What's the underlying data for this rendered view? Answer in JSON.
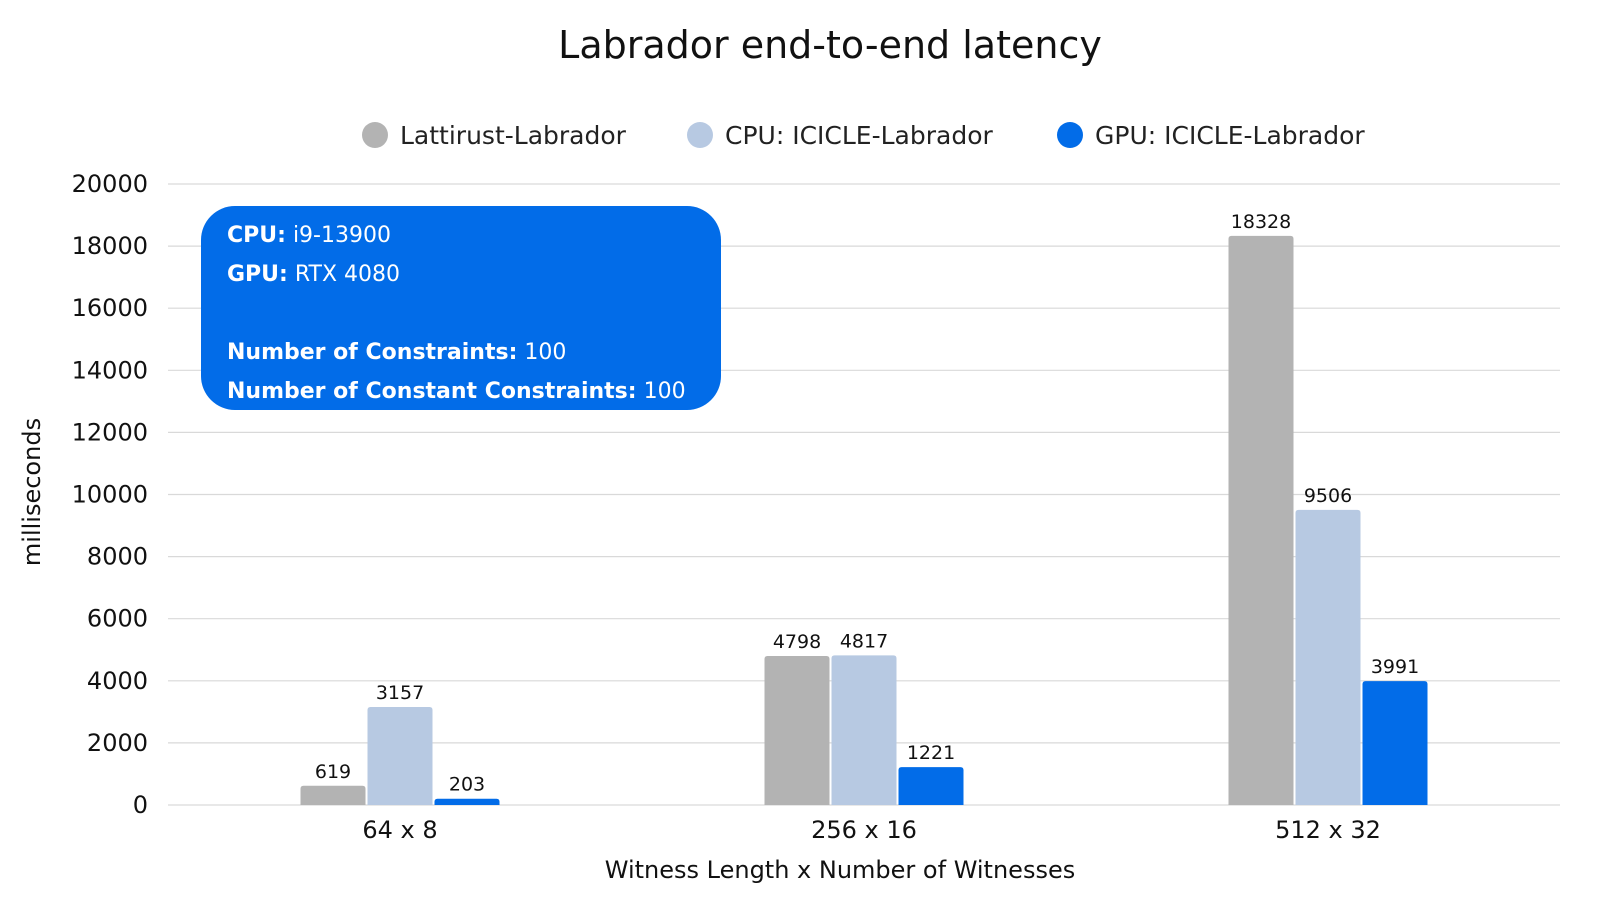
{
  "chart_data": {
    "type": "bar",
    "title": "Labrador end-to-end latency",
    "xlabel": "Witness Length x Number of Witnesses",
    "ylabel": "milliseconds",
    "categories": [
      "64 x 8",
      "256 x 16",
      "512 x 32"
    ],
    "ylim": [
      0,
      20000
    ],
    "yticks": [
      0,
      2000,
      4000,
      6000,
      8000,
      10000,
      12000,
      14000,
      16000,
      18000,
      20000
    ],
    "grid": true,
    "legend_position": "top",
    "series": [
      {
        "name": "Lattirust-Labrador",
        "color": "#b3b3b3",
        "values": [
          619,
          4798,
          18328
        ]
      },
      {
        "name": "CPU: ICICLE-Labrador",
        "color": "#b7c9e2",
        "values": [
          3157,
          4817,
          9506
        ]
      },
      {
        "name": "GPU: ICICLE-Labrador",
        "color": "#026ce8",
        "values": [
          203,
          1221,
          3991
        ]
      }
    ],
    "annotation": {
      "color": "#026ce8",
      "lines": [
        {
          "key": "CPU:",
          "value": "i9-13900"
        },
        {
          "key": "GPU:",
          "value": "RTX 4080"
        },
        {
          "key": "Number of Constraints:",
          "value": "100"
        },
        {
          "key": "Number of Constant Constraints:",
          "value": "100"
        }
      ]
    }
  }
}
